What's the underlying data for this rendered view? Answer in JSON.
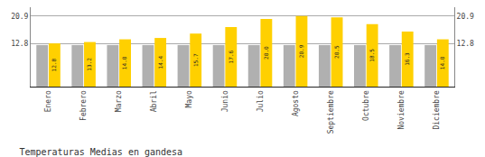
{
  "chart_data": {
    "type": "bar",
    "title": "Temperaturas Medias en gandesa",
    "categories": [
      "Enero",
      "Febrero",
      "Marzo",
      "Abril",
      "Mayo",
      "Junio",
      "Julio",
      "Agosto",
      "Septiembre",
      "Octubre",
      "Noviembre",
      "Diciembre"
    ],
    "series": [
      {
        "color": "#B0B0B0",
        "values": [
          12.3,
          12.3,
          12.3,
          12.3,
          12.3,
          12.3,
          12.3,
          12.3,
          12.3,
          12.3,
          12.3,
          12.3
        ]
      },
      {
        "color": "#FFD000",
        "values": [
          12.8,
          13.2,
          14.0,
          14.4,
          15.7,
          17.6,
          20.0,
          20.9,
          20.5,
          18.5,
          16.3,
          14.0
        ],
        "value_labels": [
          "12.8",
          "13.2",
          "14.0",
          "14.4",
          "15.7",
          "17.6",
          "20.0",
          "20.9",
          "20.5",
          "18.5",
          "16.3",
          "14.0"
        ],
        "data_labels": true
      }
    ],
    "ylim": [
      0,
      23.5
    ],
    "yticks": [
      12.8,
      20.9
    ],
    "y2lim": [
      0,
      23.5
    ],
    "y2ticks": [
      12.8,
      20.9
    ],
    "grid": true
  }
}
